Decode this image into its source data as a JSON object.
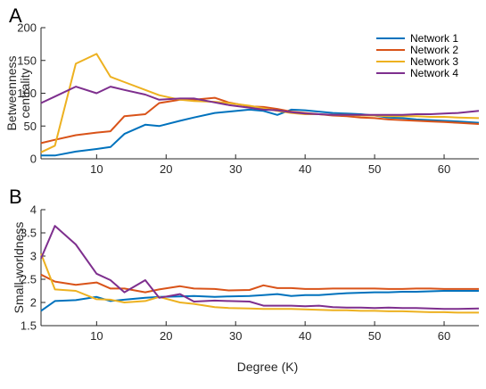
{
  "figure": {
    "xlabel": "Degree (K)"
  },
  "colors": {
    "Network 1": "#0072BD",
    "Network 2": "#D95319",
    "Network 3": "#EDB120",
    "Network 4": "#7E2F8E"
  },
  "chart_data": [
    {
      "type": "line",
      "panel": "A",
      "title": "",
      "xlabel": "",
      "ylabel_lines": [
        "Betweenness",
        "centrality"
      ],
      "xlim": [
        2,
        65
      ],
      "ylim": [
        0,
        200
      ],
      "xticks": [
        10,
        20,
        30,
        40,
        50,
        60
      ],
      "yticks": [
        0,
        50,
        100,
        150,
        200
      ],
      "grid": false,
      "legend": "top-right",
      "x": [
        2,
        4,
        7,
        10,
        12,
        14,
        17,
        19,
        22,
        24,
        27,
        29,
        32,
        34,
        36,
        38,
        40,
        42,
        44,
        46,
        48,
        50,
        52,
        54,
        56,
        58,
        60,
        62,
        65
      ],
      "series": [
        {
          "name": "Network 1",
          "values": [
            5,
            5,
            11,
            15,
            18,
            38,
            52,
            50,
            58,
            63,
            70,
            72,
            75,
            73,
            67,
            75,
            74,
            72,
            70,
            69,
            68,
            66,
            63,
            62,
            60,
            59,
            58,
            57,
            55
          ]
        },
        {
          "name": "Network 2",
          "values": [
            24,
            29,
            36,
            40,
            42,
            65,
            68,
            85,
            90,
            90,
            93,
            86,
            80,
            79,
            76,
            72,
            70,
            68,
            66,
            65,
            63,
            62,
            60,
            59,
            58,
            57,
            56,
            55,
            53
          ]
        },
        {
          "name": "Network 3",
          "values": [
            10,
            20,
            145,
            160,
            125,
            117,
            105,
            97,
            90,
            88,
            87,
            85,
            81,
            77,
            73,
            70,
            68,
            68,
            67,
            67,
            66,
            66,
            65,
            65,
            65,
            64,
            64,
            63,
            62
          ]
        },
        {
          "name": "Network 4",
          "values": [
            85,
            95,
            110,
            100,
            110,
            105,
            98,
            90,
            92,
            92,
            86,
            82,
            78,
            75,
            74,
            71,
            69,
            68,
            67,
            67,
            67,
            67,
            67,
            67,
            68,
            68,
            69,
            70,
            73
          ]
        }
      ]
    },
    {
      "type": "line",
      "panel": "B",
      "title": "",
      "xlabel": "Degree (K)",
      "ylabel_lines": [
        "Small-worldness"
      ],
      "xlim": [
        2,
        65
      ],
      "ylim": [
        1.5,
        4
      ],
      "xticks": [
        10,
        20,
        30,
        40,
        50,
        60
      ],
      "yticks": [
        1.5,
        2,
        2.5,
        3,
        3.5,
        4
      ],
      "grid": false,
      "legend": "none",
      "x": [
        2,
        4,
        7,
        10,
        12,
        14,
        17,
        19,
        22,
        24,
        27,
        29,
        32,
        34,
        36,
        38,
        40,
        42,
        44,
        46,
        48,
        50,
        52,
        54,
        56,
        58,
        60,
        62,
        65
      ],
      "series": [
        {
          "name": "Network 1",
          "values": [
            1.82,
            2.03,
            2.05,
            2.12,
            2.03,
            2.06,
            2.1,
            2.12,
            2.13,
            2.14,
            2.12,
            2.13,
            2.14,
            2.16,
            2.18,
            2.14,
            2.16,
            2.16,
            2.18,
            2.2,
            2.21,
            2.22,
            2.22,
            2.23,
            2.23,
            2.24,
            2.25,
            2.25,
            2.25
          ]
        },
        {
          "name": "Network 2",
          "values": [
            2.6,
            2.45,
            2.38,
            2.43,
            2.3,
            2.3,
            2.22,
            2.28,
            2.35,
            2.3,
            2.29,
            2.26,
            2.27,
            2.37,
            2.31,
            2.31,
            2.29,
            2.29,
            2.3,
            2.3,
            2.3,
            2.3,
            2.29,
            2.29,
            2.3,
            2.3,
            2.29,
            2.29,
            2.29
          ]
        },
        {
          "name": "Network 3",
          "values": [
            3.05,
            2.28,
            2.25,
            2.07,
            2.06,
            2.0,
            2.03,
            2.12,
            2.0,
            1.97,
            1.9,
            1.88,
            1.87,
            1.86,
            1.86,
            1.86,
            1.85,
            1.84,
            1.83,
            1.83,
            1.82,
            1.82,
            1.81,
            1.81,
            1.8,
            1.79,
            1.79,
            1.78,
            1.78
          ]
        },
        {
          "name": "Network 4",
          "values": [
            2.95,
            3.65,
            3.25,
            2.62,
            2.48,
            2.22,
            2.48,
            2.1,
            2.18,
            2.02,
            2.04,
            2.03,
            2.02,
            1.93,
            1.93,
            1.93,
            1.92,
            1.93,
            1.9,
            1.89,
            1.89,
            1.88,
            1.89,
            1.88,
            1.88,
            1.87,
            1.86,
            1.86,
            1.87
          ]
        }
      ]
    }
  ]
}
